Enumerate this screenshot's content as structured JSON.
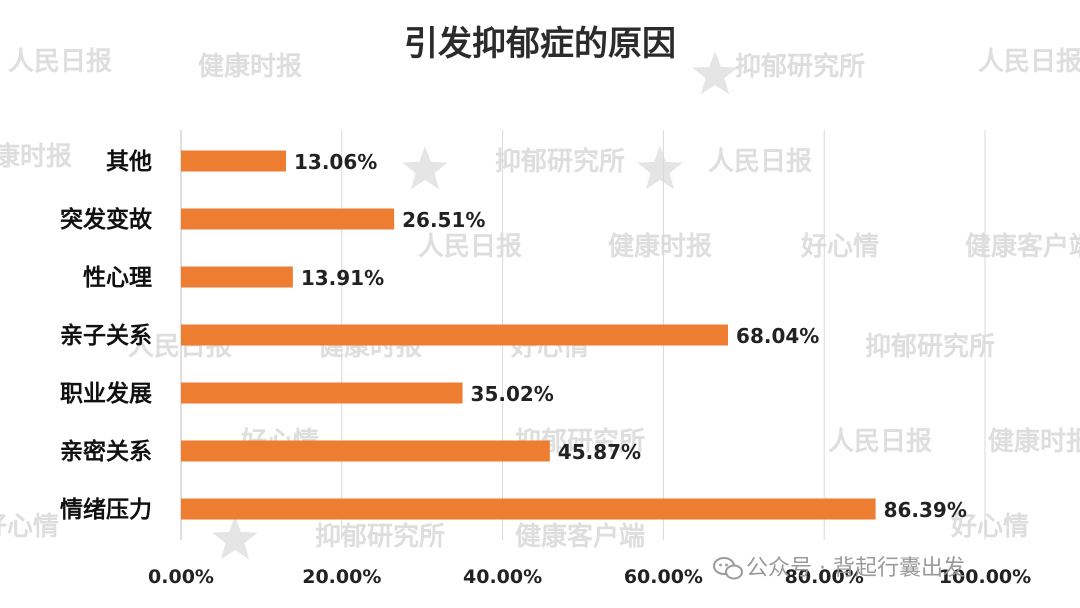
{
  "chart_data": {
    "type": "bar",
    "orientation": "horizontal",
    "title": "引发抑郁症的原因",
    "categories": [
      "其他",
      "突发变故",
      "性心理",
      "亲子关系",
      "职业发展",
      "亲密关系",
      "情绪压力"
    ],
    "values": [
      13.06,
      26.51,
      13.91,
      68.04,
      35.02,
      45.87,
      86.39
    ],
    "value_labels": [
      "13.06%",
      "26.51%",
      "13.91%",
      "68.04%",
      "35.02%",
      "45.87%",
      "86.39%"
    ],
    "x_ticks": [
      "0.00%",
      "20.00%",
      "40.00%",
      "60.00%",
      "80.00%",
      "100.00%"
    ],
    "xlim": [
      0,
      100
    ],
    "grid": true,
    "bar_color": "#ED7D31"
  },
  "watermarks": [
    "人民日报",
    "健康时报",
    "抑郁研究所",
    "好心情",
    "健康客户端"
  ],
  "footer": {
    "icon": "wechat-icon",
    "text": "公众号 · 背起行囊出发"
  }
}
